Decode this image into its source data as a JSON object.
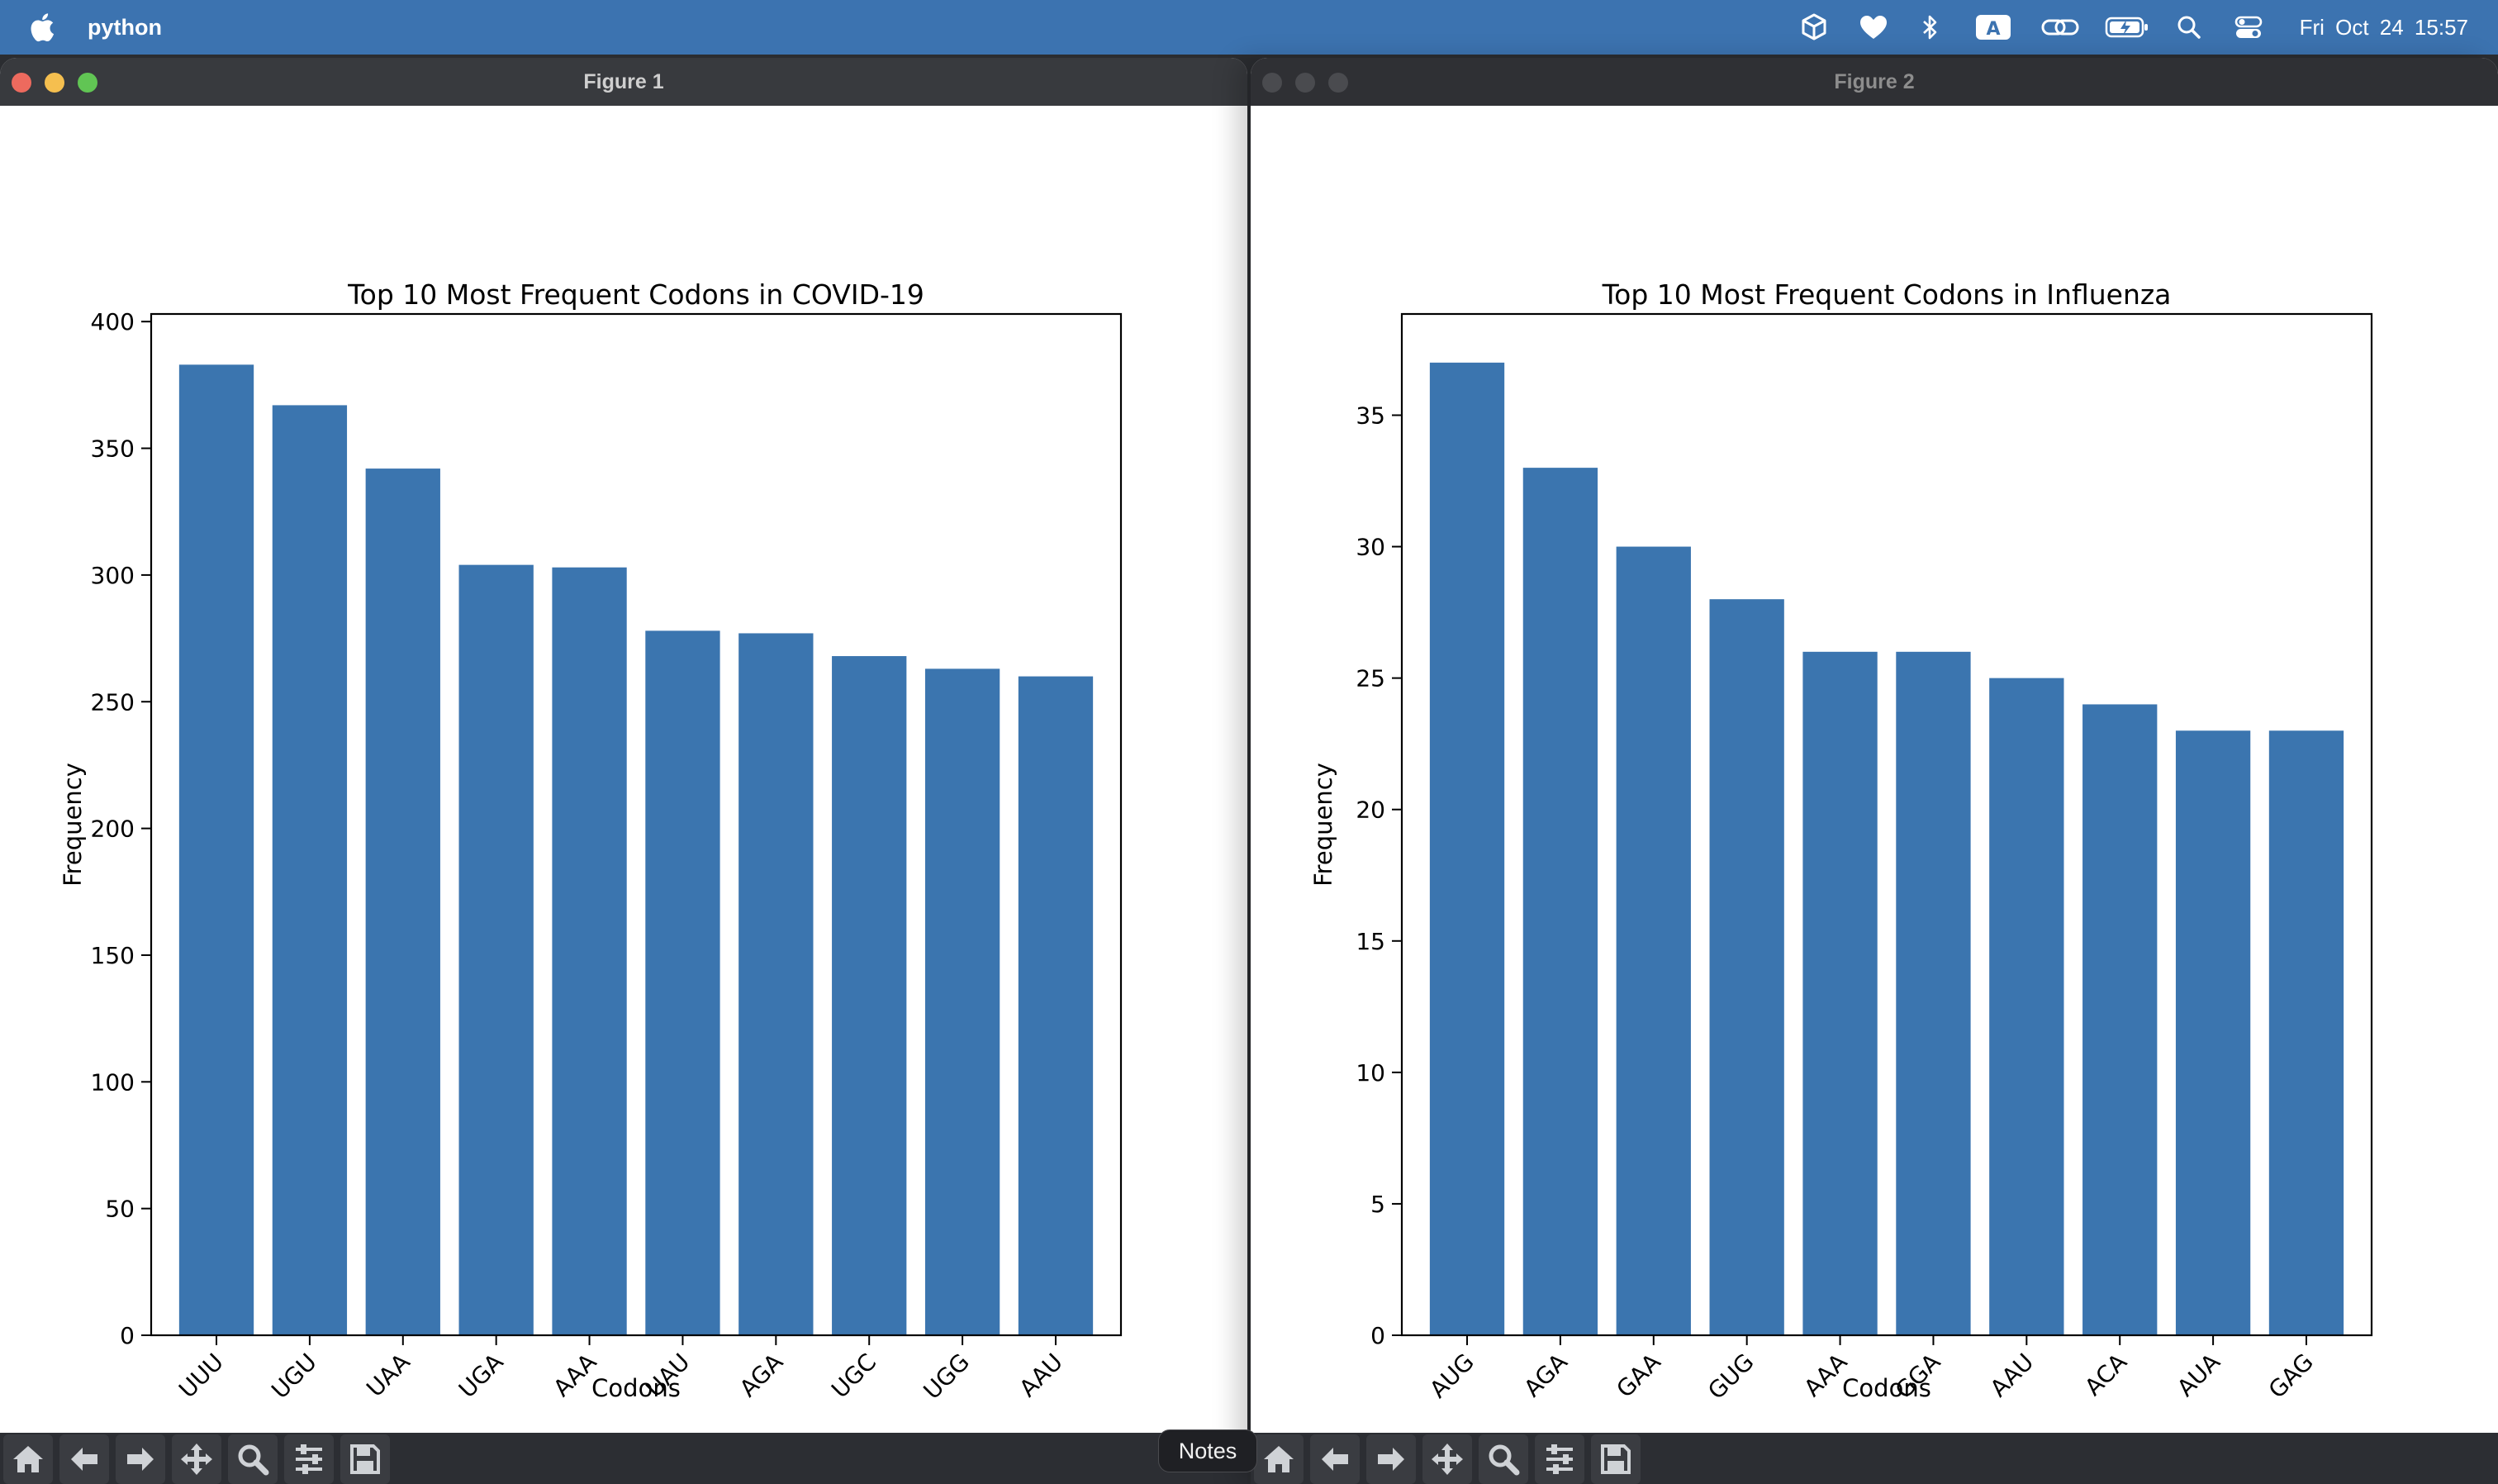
{
  "menubar": {
    "app_name": "python",
    "clock": "Fri Oct 24  15:57",
    "status_icons": [
      "cube-icon",
      "heart-icon",
      "bluetooth-icon",
      "input-source-icon",
      "link-icon",
      "battery-icon",
      "search-icon",
      "control-center-icon"
    ],
    "input_source_letter": "A"
  },
  "windows": [
    {
      "title": "Figure 1",
      "active": true,
      "chart_data": {
        "type": "bar",
        "title": "Top 10 Most Frequent Codons in COVID-19",
        "xlabel": "Codons",
        "ylabel": "Frequency",
        "categories": [
          "UUU",
          "UGU",
          "UAA",
          "UGA",
          "AAA",
          "UAU",
          "AGA",
          "UGC",
          "UGG",
          "AAU"
        ],
        "values": [
          383,
          367,
          342,
          304,
          303,
          278,
          277,
          268,
          263,
          260
        ],
        "ylim": [
          0,
          403
        ],
        "yticks": [
          0,
          50,
          100,
          150,
          200,
          250,
          300,
          350,
          400
        ],
        "bar_color": "#3b75af",
        "grid": false,
        "legend": "none"
      }
    },
    {
      "title": "Figure 2",
      "active": false,
      "chart_data": {
        "type": "bar",
        "title": "Top 10 Most Frequent Codons in Influenza",
        "xlabel": "Codons",
        "ylabel": "Frequency",
        "categories": [
          "AUG",
          "AGA",
          "GAA",
          "GUG",
          "AAA",
          "GGA",
          "AAU",
          "ACA",
          "AUA",
          "GAG"
        ],
        "values": [
          37,
          33,
          30,
          28,
          26,
          26,
          25,
          24,
          23,
          23
        ],
        "ylim": [
          0,
          38.85
        ],
        "yticks": [
          0,
          5,
          10,
          15,
          20,
          25,
          30,
          35
        ],
        "bar_color": "#3b75af",
        "grid": false,
        "legend": "none"
      }
    }
  ],
  "toolbar_buttons": [
    "home-icon",
    "back-arrow-icon",
    "forward-arrow-icon",
    "pan-icon",
    "zoom-icon",
    "configure-subplots-icon",
    "save-icon"
  ],
  "tooltip": {
    "label": "Notes"
  },
  "colors": {
    "menubar": "#3c73b0",
    "titlebar_active": "#383a3e",
    "titlebar_inactive": "#2f3034",
    "close": "#ed6a5e",
    "minimize": "#f5bf4f",
    "zoom": "#61c554",
    "toolbar": "#2c2e33"
  }
}
